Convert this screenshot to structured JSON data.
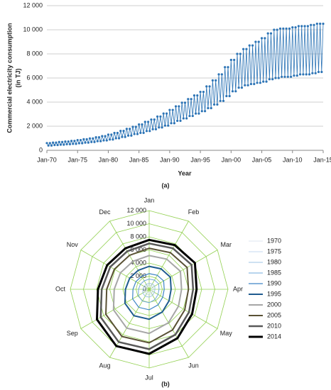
{
  "chart_data": [
    {
      "type": "line",
      "caption": "(a)",
      "y_label": [
        "Commercial electricity consumption",
        "(in TJ)"
      ],
      "x_label": "Year",
      "color": "#2e75b6",
      "grid": true,
      "xlim": [
        1970,
        2015
      ],
      "xticks": [
        {
          "value": 1970,
          "label": "Jan-70"
        },
        {
          "value": 1975,
          "label": "Jan-75"
        },
        {
          "value": 1980,
          "label": "Jan-80"
        },
        {
          "value": 1985,
          "label": "Jan-85"
        },
        {
          "value": 1990,
          "label": "Jan-90"
        },
        {
          "value": 1995,
          "label": "Jan-95"
        },
        {
          "value": 2000,
          "label": "Jan-00"
        },
        {
          "value": 2005,
          "label": "Jan-05"
        },
        {
          "value": 2010,
          "label": "Jan-10"
        },
        {
          "value": 2015,
          "label": "Jan-15"
        }
      ],
      "ylim": [
        0,
        12000
      ],
      "yticks": [
        0,
        {
          "value": 2000,
          "label": "2 000"
        },
        {
          "value": 4000,
          "label": "4 000"
        },
        {
          "value": 6000,
          "label": "6 000"
        },
        {
          "value": 8000,
          "label": "8 000"
        },
        {
          "value": 10000,
          "label": "10 000"
        },
        {
          "value": 12000,
          "label": "12 000"
        }
      ],
      "x": [
        1970,
        1970.25,
        1970.5,
        1970.75,
        1971,
        1971.25,
        1971.5,
        1971.75,
        1972,
        1972.25,
        1972.5,
        1972.75,
        1973,
        1973.25,
        1973.5,
        1973.75,
        1974,
        1974.25,
        1974.5,
        1974.75,
        1975,
        1975.25,
        1975.5,
        1975.75,
        1976,
        1976.25,
        1976.5,
        1976.75,
        1977,
        1977.25,
        1977.5,
        1977.75,
        1978,
        1978.25,
        1978.5,
        1978.75,
        1979,
        1979.25,
        1979.5,
        1979.75,
        1980,
        1980.25,
        1980.5,
        1980.75,
        1981,
        1981.25,
        1981.5,
        1981.75,
        1982,
        1982.25,
        1982.5,
        1982.75,
        1983,
        1983.25,
        1983.5,
        1983.75,
        1984,
        1984.25,
        1984.5,
        1984.75,
        1985,
        1985.25,
        1985.5,
        1985.75,
        1986,
        1986.25,
        1986.5,
        1986.75,
        1987,
        1987.25,
        1987.5,
        1987.75,
        1988,
        1988.25,
        1988.5,
        1988.75,
        1989,
        1989.25,
        1989.5,
        1989.75,
        1990,
        1990.25,
        1990.5,
        1990.75,
        1991,
        1991.25,
        1991.5,
        1991.75,
        1992,
        1992.25,
        1992.5,
        1992.75,
        1993,
        1993.25,
        1993.5,
        1993.75,
        1994,
        1994.25,
        1994.5,
        1994.75,
        1995,
        1995.25,
        1995.5,
        1995.75,
        1996,
        1996.25,
        1996.5,
        1996.75,
        1997,
        1997.25,
        1997.5,
        1997.75,
        1998,
        1998.25,
        1998.5,
        1998.75,
        1999,
        1999.25,
        1999.5,
        1999.75,
        2000,
        2000.25,
        2000.5,
        2000.75,
        2001,
        2001.25,
        2001.5,
        2001.75,
        2002,
        2002.25,
        2002.5,
        2002.75,
        2003,
        2003.25,
        2003.5,
        2003.75,
        2004,
        2004.25,
        2004.5,
        2004.75,
        2005,
        2005.25,
        2005.5,
        2005.75,
        2006,
        2006.25,
        2006.5,
        2006.75,
        2007,
        2007.25,
        2007.5,
        2007.75,
        2008,
        2008.25,
        2008.5,
        2008.75,
        2009,
        2009.25,
        2009.5,
        2009.75,
        2010,
        2010.25,
        2010.5,
        2010.75,
        2011,
        2011.25,
        2011.5,
        2011.75,
        2012,
        2012.25,
        2012.5,
        2012.75,
        2013,
        2013.25,
        2013.5,
        2013.75,
        2014,
        2014.25,
        2014.5,
        2014.75,
        2015
      ],
      "values": [
        600,
        400,
        600,
        400,
        640,
        440,
        640,
        440,
        690,
        470,
        690,
        470,
        730,
        510,
        730,
        510,
        780,
        540,
        780,
        540,
        850,
        590,
        850,
        590,
        920,
        640,
        920,
        640,
        990,
        690,
        990,
        690,
        1080,
        760,
        1080,
        760,
        1180,
        820,
        1180,
        820,
        1300,
        900,
        1300,
        900,
        1440,
        1000,
        1440,
        1000,
        1610,
        1110,
        1610,
        1110,
        1780,
        1220,
        1780,
        1220,
        1950,
        1350,
        1950,
        1350,
        2150,
        1450,
        2150,
        1450,
        2360,
        1600,
        2360,
        1600,
        2550,
        1750,
        2550,
        1750,
        2800,
        1900,
        2800,
        1900,
        3050,
        2050,
        3050,
        2050,
        3350,
        2250,
        3350,
        2250,
        3650,
        2450,
        3650,
        2450,
        3950,
        2650,
        3950,
        2650,
        4250,
        2850,
        4250,
        2850,
        4550,
        3050,
        4550,
        3050,
        4850,
        3250,
        4850,
        3250,
        5300,
        3500,
        5300,
        3500,
        5800,
        3800,
        5800,
        3800,
        6300,
        4100,
        6300,
        4100,
        6900,
        4500,
        6900,
        4500,
        7500,
        4900,
        7500,
        4900,
        8000,
        5200,
        8000,
        5200,
        8400,
        5400,
        8400,
        5400,
        8700,
        5500,
        8700,
        5500,
        9000,
        5600,
        9000,
        5600,
        9300,
        5700,
        9300,
        5700,
        9700,
        5900,
        9700,
        5900,
        10000,
        6000,
        10000,
        6000,
        10100,
        6100,
        10100,
        6100,
        10100,
        6100,
        10100,
        6100,
        10200,
        6200,
        10200,
        6200,
        10300,
        6300,
        10300,
        6300,
        10300,
        6300,
        10300,
        6300,
        10400,
        6400,
        10400,
        6400,
        10500,
        6500,
        10500,
        6500,
        10500
      ]
    },
    {
      "type": "radar",
      "caption": "(b)",
      "grid_color": "#92d050",
      "categories": [
        "Jan",
        "Feb",
        "Mar",
        "Apr",
        "May",
        "Jun",
        "Jul",
        "Aug",
        "Sep",
        "Oct",
        "Nov",
        "Dec"
      ],
      "rlim": [
        0,
        12000
      ],
      "rticks": [
        0,
        {
          "value": 2000,
          "label": "2 000"
        },
        {
          "value": 4000,
          "label": "4 000"
        },
        {
          "value": 6000,
          "label": "6 000"
        },
        {
          "value": 8000,
          "label": "8 000"
        },
        {
          "value": 10000,
          "label": "10 000"
        },
        {
          "value": 12000,
          "label": "12 000"
        }
      ],
      "series": [
        {
          "name": "1970",
          "color": "#dce6f2",
          "width": 1,
          "values": [
            410,
            430,
            440,
            400,
            410,
            470,
            540,
            550,
            500,
            430,
            410,
            400
          ]
        },
        {
          "name": "1975",
          "color": "#c6d9f1",
          "width": 1,
          "values": [
            640,
            670,
            690,
            620,
            640,
            740,
            840,
            850,
            780,
            670,
            630,
            620
          ]
        },
        {
          "name": "1980",
          "color": "#9dc3e6",
          "width": 1,
          "values": [
            920,
            950,
            980,
            880,
            920,
            1050,
            1200,
            1220,
            1120,
            950,
            900,
            880
          ]
        },
        {
          "name": "1985",
          "color": "#6fa8dc",
          "width": 1,
          "values": [
            1560,
            1620,
            1670,
            1500,
            1560,
            1790,
            2040,
            2070,
            1900,
            1620,
            1530,
            1500
          ]
        },
        {
          "name": "1990",
          "color": "#3d85c6",
          "width": 1.2,
          "values": [
            2390,
            2470,
            2550,
            2290,
            2390,
            2730,
            3120,
            3170,
            2910,
            2470,
            2340,
            2290
          ]
        },
        {
          "name": "1995",
          "color": "#1f5b8f",
          "width": 2,
          "values": [
            3500,
            3610,
            3720,
            3340,
            3500,
            3990,
            4560,
            4640,
            4260,
            3610,
            3420,
            3340
          ]
        },
        {
          "name": "2000",
          "color": "#a6a6a6",
          "width": 2,
          "values": [
            5150,
            5320,
            5490,
            4930,
            5150,
            5880,
            6720,
            6830,
            6270,
            5320,
            5040,
            4930
          ]
        },
        {
          "name": "2005",
          "color": "#5a5135",
          "width": 2,
          "values": [
            6260,
            6460,
            6660,
            5980,
            6260,
            7140,
            8160,
            8300,
            7620,
            6460,
            6120,
            5980
          ]
        },
        {
          "name": "2010",
          "color": "#595959",
          "width": 2.5,
          "values": [
            6990,
            7220,
            7450,
            6690,
            6990,
            7980,
            9120,
            9270,
            8510,
            7220,
            6840,
            6690
          ]
        },
        {
          "name": "2014",
          "color": "#000000",
          "width": 3,
          "values": [
            7540,
            7790,
            8040,
            7220,
            7540,
            8610,
            9840,
            10000,
            9180,
            7790,
            7380,
            7220
          ]
        }
      ]
    }
  ]
}
